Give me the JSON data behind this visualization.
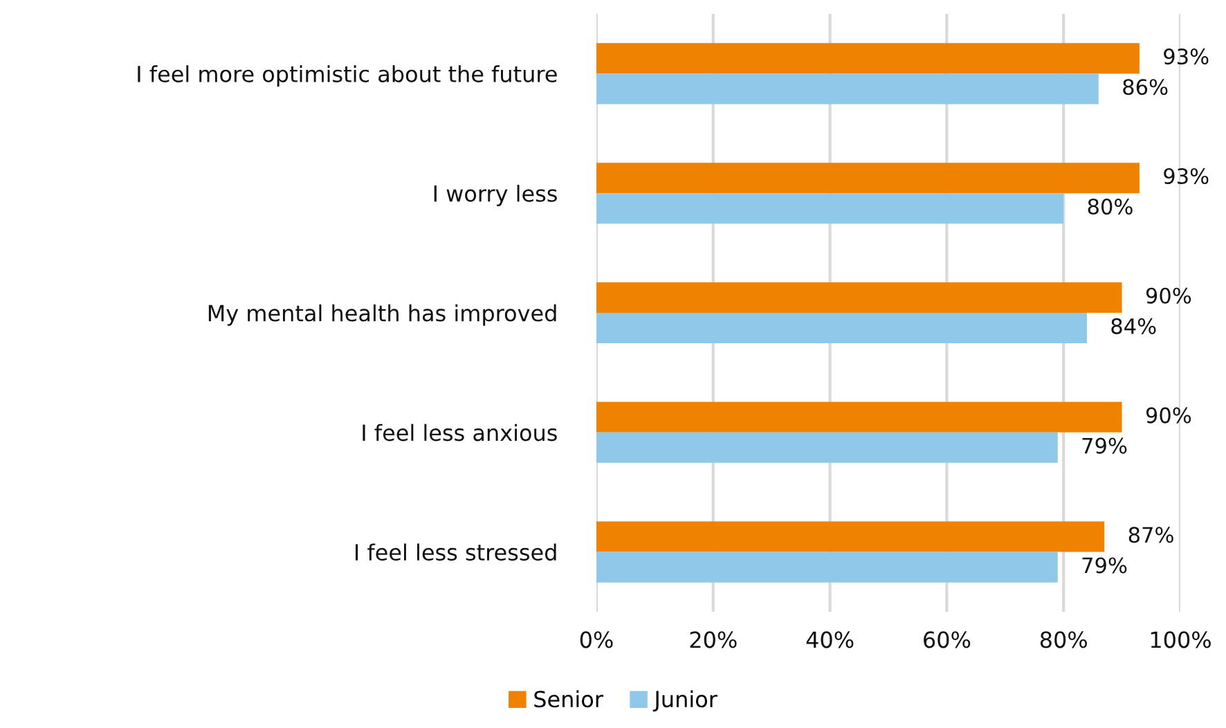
{
  "chart_data": {
    "type": "bar",
    "orientation": "horizontal",
    "categories": [
      "I feel more optimistic about the future",
      "I worry less",
      "My mental health has improved",
      "I feel less anxious",
      "I feel less stressed"
    ],
    "series": [
      {
        "name": "Senior",
        "color": "#ef8200",
        "values": [
          93,
          93,
          90,
          90,
          87
        ],
        "value_labels": [
          "93%",
          "93%",
          "90%",
          "90%",
          "87%"
        ]
      },
      {
        "name": "Junior",
        "color": "#8fc8e8",
        "values": [
          86,
          80,
          84,
          79,
          79
        ],
        "value_labels": [
          "86%",
          "80%",
          "84%",
          "79%",
          "79%"
        ]
      }
    ],
    "xlim": [
      0,
      100
    ],
    "xticks": [
      {
        "value": 0,
        "label": "0%"
      },
      {
        "value": 20,
        "label": "20%"
      },
      {
        "value": 40,
        "label": "40%"
      },
      {
        "value": 60,
        "label": "60%"
      },
      {
        "value": 80,
        "label": "80%"
      },
      {
        "value": 100,
        "label": "100%"
      }
    ],
    "grid": "x",
    "legend": "bottom"
  }
}
